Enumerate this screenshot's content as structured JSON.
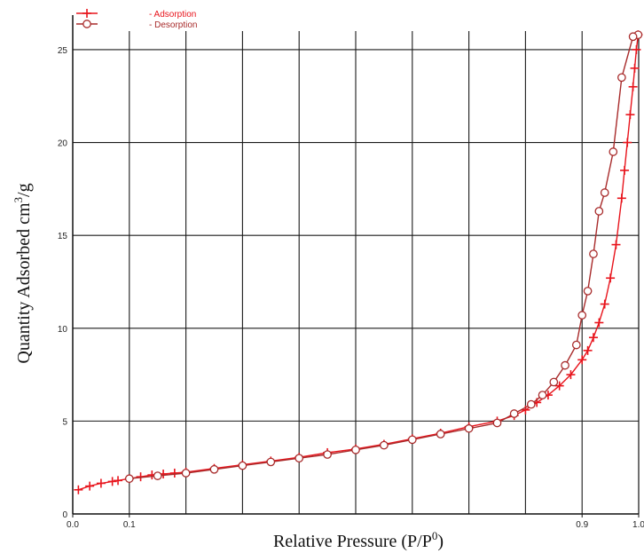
{
  "chart_data": {
    "type": "line",
    "title": "",
    "xlabel": "Relative Pressure (P/P",
    "xlabel_sup": "0",
    "xlabel_end": ")",
    "ylabel": "Quantity  Adsorbed cm",
    "ylabel_sup": "3",
    "ylabel_end": "/g",
    "xlim": [
      0,
      1.0
    ],
    "ylim": [
      0,
      26
    ],
    "grid": true,
    "x_tick_labels": [
      {
        "value": 0.0,
        "label": "0.0"
      },
      {
        "value": 0.1,
        "label": "0.1"
      },
      {
        "value": 0.9,
        "label": "0.9"
      },
      {
        "value": 1.0,
        "label": "1.0"
      }
    ],
    "y_tick_labels": [
      {
        "value": 0,
        "label": "0"
      },
      {
        "value": 5,
        "label": "5"
      },
      {
        "value": 10,
        "label": "10"
      },
      {
        "value": 15,
        "label": "15"
      },
      {
        "value": 20,
        "label": "20"
      },
      {
        "value": 25,
        "label": "25"
      }
    ],
    "legend": {
      "placement": "top-left"
    },
    "series": [
      {
        "name": "- Adsorption",
        "color": "#e8141c",
        "marker": "plus",
        "x": [
          0.01,
          0.03,
          0.05,
          0.07,
          0.08,
          0.1,
          0.12,
          0.14,
          0.16,
          0.18,
          0.2,
          0.25,
          0.3,
          0.35,
          0.4,
          0.45,
          0.5,
          0.55,
          0.6,
          0.65,
          0.7,
          0.75,
          0.78,
          0.8,
          0.82,
          0.84,
          0.86,
          0.88,
          0.9,
          0.91,
          0.92,
          0.93,
          0.94,
          0.95,
          0.96,
          0.97,
          0.975,
          0.98,
          0.985,
          0.99,
          0.993,
          0.996,
          0.999
        ],
        "y": [
          1.3,
          1.5,
          1.65,
          1.75,
          1.8,
          1.9,
          2.0,
          2.1,
          2.15,
          2.2,
          2.25,
          2.45,
          2.65,
          2.85,
          3.05,
          3.3,
          3.5,
          3.75,
          4.05,
          4.35,
          4.7,
          5.0,
          5.3,
          5.6,
          6.0,
          6.4,
          6.9,
          7.5,
          8.3,
          8.8,
          9.5,
          10.3,
          11.3,
          12.7,
          14.5,
          17.0,
          18.5,
          20.0,
          21.5,
          23.0,
          24.0,
          25.0,
          25.8
        ]
      },
      {
        "name": "- Desorption",
        "color": "#a82b2b",
        "marker": "circle",
        "x": [
          0.999,
          0.99,
          0.97,
          0.955,
          0.94,
          0.93,
          0.92,
          0.91,
          0.9,
          0.89,
          0.87,
          0.85,
          0.83,
          0.81,
          0.78,
          0.75,
          0.7,
          0.65,
          0.6,
          0.55,
          0.5,
          0.45,
          0.4,
          0.35,
          0.3,
          0.25,
          0.2,
          0.15,
          0.1
        ],
        "y": [
          25.8,
          25.7,
          23.5,
          19.5,
          17.3,
          16.3,
          14.0,
          12.0,
          10.7,
          9.1,
          8.0,
          7.1,
          6.4,
          5.9,
          5.4,
          4.9,
          4.6,
          4.3,
          4.0,
          3.7,
          3.45,
          3.2,
          3.0,
          2.8,
          2.6,
          2.4,
          2.2,
          2.05,
          1.9
        ]
      }
    ]
  }
}
